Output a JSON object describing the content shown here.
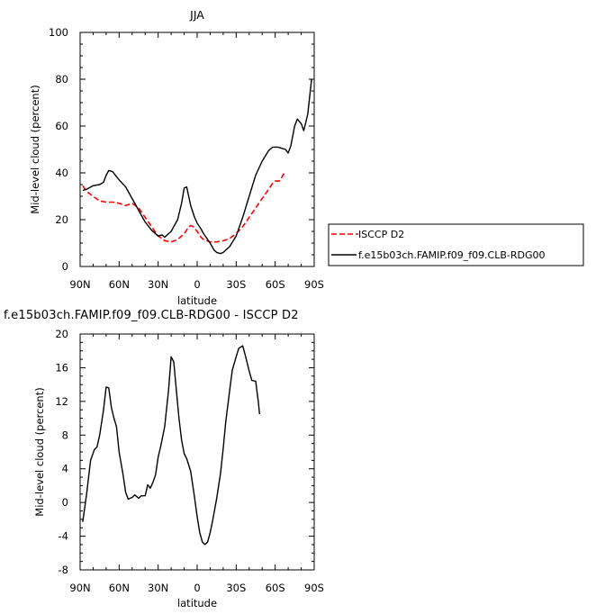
{
  "x_ticks": [
    "90N",
    "60N",
    "30N",
    "0",
    "30S",
    "60S",
    "90S"
  ],
  "chart_data": [
    {
      "type": "line",
      "title": "JJA",
      "xlabel": "latitude",
      "ylabel": "Mid-level cloud (percent)",
      "x_range": [
        90,
        -90
      ],
      "ylim": [
        0,
        100
      ],
      "y_ticks": [
        0,
        20,
        40,
        60,
        80,
        100
      ],
      "legend_position": "right",
      "series": [
        {
          "name": "ISCCP D2",
          "color": "#ff0000",
          "dash": true,
          "points": [
            [
              88,
              34.5
            ],
            [
              85,
              32
            ],
            [
              80,
              30
            ],
            [
              75,
              28
            ],
            [
              70,
              27.5
            ],
            [
              65,
              27.5
            ],
            [
              60,
              27
            ],
            [
              55,
              26
            ],
            [
              50,
              27
            ],
            [
              45,
              25
            ],
            [
              40,
              21
            ],
            [
              35,
              17
            ],
            [
              30,
              13
            ],
            [
              27,
              12
            ],
            [
              25,
              11
            ],
            [
              20,
              10.5
            ],
            [
              15,
              11.5
            ],
            [
              10,
              14
            ],
            [
              7,
              16.5
            ],
            [
              5,
              17.5
            ],
            [
              3,
              17
            ],
            [
              0,
              15
            ],
            [
              -3,
              12.5
            ],
            [
              -5,
              11.5
            ],
            [
              -10,
              10.5
            ],
            [
              -15,
              10.5
            ],
            [
              -20,
              11
            ],
            [
              -25,
              12
            ],
            [
              -30,
              14
            ],
            [
              -35,
              17
            ],
            [
              -40,
              21
            ],
            [
              -45,
              25
            ],
            [
              -50,
              29
            ],
            [
              -55,
              33
            ],
            [
              -58,
              35.5
            ],
            [
              -60,
              36.5
            ],
            [
              -63,
              36.5
            ],
            [
              -65,
              38
            ],
            [
              -67,
              40
            ]
          ]
        },
        {
          "name": "f.e15b03ch.FAMIP.f09_f09.CLB-RDG00",
          "color": "#000000",
          "dash": false,
          "points": [
            [
              88,
              32.5
            ],
            [
              85,
              33
            ],
            [
              80,
              34.5
            ],
            [
              75,
              35
            ],
            [
              72,
              36
            ],
            [
              70,
              39
            ],
            [
              68,
              41
            ],
            [
              65,
              40.5
            ],
            [
              60,
              37
            ],
            [
              55,
              34
            ],
            [
              50,
              29
            ],
            [
              45,
              24
            ],
            [
              40,
              19
            ],
            [
              35,
              15.5
            ],
            [
              30,
              13
            ],
            [
              27,
              13.5
            ],
            [
              25,
              12.5
            ],
            [
              20,
              15
            ],
            [
              15,
              20
            ],
            [
              12,
              27
            ],
            [
              10,
              33.5
            ],
            [
              8,
              34
            ],
            [
              5,
              26
            ],
            [
              2,
              21
            ],
            [
              0,
              18.5
            ],
            [
              -3,
              16
            ],
            [
              -5,
              14
            ],
            [
              -10,
              10
            ],
            [
              -13,
              7
            ],
            [
              -15,
              6
            ],
            [
              -18,
              5.5
            ],
            [
              -20,
              6
            ],
            [
              -25,
              8.5
            ],
            [
              -30,
              13
            ],
            [
              -35,
              21
            ],
            [
              -40,
              30
            ],
            [
              -45,
              39
            ],
            [
              -50,
              45
            ],
            [
              -55,
              49.5
            ],
            [
              -58,
              51
            ],
            [
              -62,
              51
            ],
            [
              -65,
              50.5
            ],
            [
              -68,
              50
            ],
            [
              -70,
              48.5
            ],
            [
              -72,
              51.5
            ],
            [
              -75,
              60
            ],
            [
              -77,
              63
            ],
            [
              -80,
              61
            ],
            [
              -82,
              58
            ],
            [
              -85,
              65
            ],
            [
              -88,
              80
            ]
          ]
        }
      ]
    },
    {
      "type": "line",
      "title": "f.e15b03ch.FAMIP.f09_f09.CLB-RDG00 - ISCCP D2",
      "xlabel": "latitude",
      "ylabel": "Mid-level cloud (percent)",
      "x_range": [
        90,
        -90
      ],
      "ylim": [
        -8,
        20
      ],
      "y_ticks": [
        -8,
        -4,
        0,
        4,
        8,
        12,
        16,
        20
      ],
      "series": [
        {
          "color": "#000000",
          "dash": false,
          "points": [
            [
              88,
              -2.3
            ],
            [
              85,
              1
            ],
            [
              82,
              5
            ],
            [
              79,
              6.3
            ],
            [
              77,
              6.6
            ],
            [
              75,
              8
            ],
            [
              72,
              11
            ],
            [
              70,
              13.7
            ],
            [
              68,
              13.6
            ],
            [
              66,
              11.3
            ],
            [
              64,
              10
            ],
            [
              62,
              9
            ],
            [
              60,
              6
            ],
            [
              57,
              3.3
            ],
            [
              55,
              1.2
            ],
            [
              53,
              0.4
            ],
            [
              50,
              0.6
            ],
            [
              48,
              0.9
            ],
            [
              45,
              0.5
            ],
            [
              43,
              0.8
            ],
            [
              40,
              0.8
            ],
            [
              38,
              2.1
            ],
            [
              36,
              1.7
            ],
            [
              34,
              2.4
            ],
            [
              32,
              3.3
            ],
            [
              30,
              5.4
            ],
            [
              28,
              6.7
            ],
            [
              25,
              9
            ],
            [
              22,
              13.3
            ],
            [
              20,
              17.3
            ],
            [
              18,
              16.7
            ],
            [
              16,
              13.3
            ],
            [
              14,
              10
            ],
            [
              12,
              7.4
            ],
            [
              10,
              5.8
            ],
            [
              8,
              5.2
            ],
            [
              5,
              3.7
            ],
            [
              2,
              0.6
            ],
            [
              0,
              -1.7
            ],
            [
              -2,
              -3.6
            ],
            [
              -4,
              -4.7
            ],
            [
              -6,
              -5
            ],
            [
              -8,
              -4.7
            ],
            [
              -10,
              -3.6
            ],
            [
              -12,
              -2.1
            ],
            [
              -15,
              0.5
            ],
            [
              -18,
              3.5
            ],
            [
              -20,
              6.4
            ],
            [
              -22,
              9.6
            ],
            [
              -25,
              13.3
            ],
            [
              -27,
              15.7
            ],
            [
              -30,
              17.3
            ],
            [
              -32,
              18.3
            ],
            [
              -35,
              18.6
            ],
            [
              -37,
              17.5
            ],
            [
              -40,
              15.6
            ],
            [
              -42,
              14.5
            ],
            [
              -45,
              14.4
            ],
            [
              -47,
              12
            ],
            [
              -48,
              10.5
            ]
          ]
        }
      ]
    }
  ]
}
